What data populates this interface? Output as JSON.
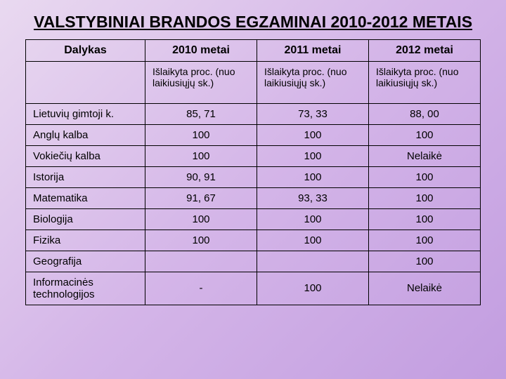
{
  "title": "VALSTYBINIAI BRANDOS EGZAMINAI 2010-2012 METAIS",
  "table": {
    "header": {
      "subject": "Dalykas",
      "y2010": "2010 metai",
      "y2011": "2011 metai",
      "y2012": "2012 metai"
    },
    "subheader": {
      "subject": "",
      "y2010": "Išlaikyta proc. (nuo laikiusiųjų sk.)",
      "y2011": "Išlaikyta proc. (nuo laikiusiųjų sk.)",
      "y2012": "Išlaikyta proc. (nuo laikiusiųjų sk.)"
    },
    "rows": [
      {
        "subject": "Lietuvių gimtoji k.",
        "y2010": "85, 71",
        "y2011": "73, 33",
        "y2012": "88, 00"
      },
      {
        "subject": "Anglų kalba",
        "y2010": "100",
        "y2011": "100",
        "y2012": "100"
      },
      {
        "subject": "Vokiečių kalba",
        "y2010": "100",
        "y2011": "100",
        "y2012": "Nelaikė"
      },
      {
        "subject": "Istorija",
        "y2010": "90, 91",
        "y2011": "100",
        "y2012": "100"
      },
      {
        "subject": "Matematika",
        "y2010": "91, 67",
        "y2011": "93, 33",
        "y2012": "100"
      },
      {
        "subject": "Biologija",
        "y2010": "100",
        "y2011": "100",
        "y2012": "100"
      },
      {
        "subject": "Fizika",
        "y2010": "100",
        "y2011": "100",
        "y2012": "100"
      },
      {
        "subject": "Geografija",
        "y2010": "",
        "y2011": "",
        "y2012": "100"
      },
      {
        "subject": "Informacinės technologijos",
        "y2010": "-",
        "y2011": "100",
        "y2012": "Nelaikė"
      }
    ],
    "styling": {
      "border_color": "#000000",
      "border_width": 1.5,
      "title_fontsize": 23,
      "header_fontsize": 16,
      "cell_fontsize": 15,
      "subheader_fontsize": 14,
      "background_gradient": [
        "#e9d9f0",
        "#d4b5e8",
        "#c29de0"
      ],
      "text_color": "#000000",
      "col_widths_pct": [
        26,
        24.6,
        24.6,
        24.6
      ]
    }
  }
}
